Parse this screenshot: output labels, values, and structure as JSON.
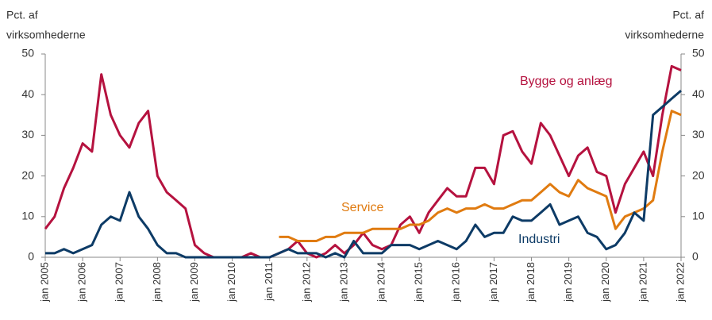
{
  "chart_data": {
    "type": "line",
    "ylabel_lines": [
      "Pct. af",
      "virksomhederne"
    ],
    "y2label_lines": [
      "Pct. af",
      "virksomhederne"
    ],
    "x": [
      2005,
      2005.25,
      2005.5,
      2005.75,
      2006,
      2006.25,
      2006.5,
      2006.75,
      2007,
      2007.25,
      2007.5,
      2007.75,
      2008,
      2008.25,
      2008.5,
      2008.75,
      2009,
      2009.25,
      2009.5,
      2009.75,
      2010,
      2010.25,
      2010.5,
      2010.75,
      2011,
      2011.25,
      2011.5,
      2011.75,
      2012,
      2012.25,
      2012.5,
      2012.75,
      2013,
      2013.25,
      2013.5,
      2013.75,
      2014,
      2014.25,
      2014.5,
      2014.75,
      2015,
      2015.25,
      2015.5,
      2015.75,
      2016,
      2016.25,
      2016.5,
      2016.75,
      2017,
      2017.25,
      2017.5,
      2017.75,
      2018,
      2018.25,
      2018.5,
      2018.75,
      2019,
      2019.25,
      2019.5,
      2019.75,
      2020,
      2020.25,
      2020.5,
      2020.75,
      2021,
      2021.25,
      2021.5,
      2021.75,
      2022
    ],
    "series": [
      {
        "name": "Bygge og anlæg",
        "color": "#b5123f",
        "values": [
          7,
          10,
          17,
          22,
          28,
          26,
          45,
          35,
          30,
          27,
          33,
          36,
          20,
          16,
          14,
          12,
          3,
          1,
          0,
          0,
          0,
          0,
          1,
          0,
          0,
          1,
          2,
          4,
          1,
          0,
          1,
          3,
          1,
          3,
          6,
          3,
          2,
          3,
          8,
          10,
          6,
          11,
          14,
          17,
          15,
          15,
          22,
          22,
          18,
          30,
          31,
          26,
          23,
          33,
          30,
          25,
          20,
          25,
          27,
          21,
          20,
          11,
          18,
          22,
          26,
          20,
          35,
          47,
          46
        ]
      },
      {
        "name": "Service",
        "color": "#e07b10",
        "values": [
          null,
          null,
          null,
          null,
          null,
          null,
          null,
          null,
          null,
          null,
          null,
          null,
          null,
          null,
          null,
          null,
          null,
          null,
          null,
          null,
          null,
          null,
          null,
          null,
          null,
          5,
          5,
          4,
          4,
          4,
          5,
          5,
          6,
          6,
          6,
          7,
          7,
          7,
          7,
          8,
          8,
          9,
          11,
          12,
          11,
          12,
          12,
          13,
          12,
          12,
          13,
          14,
          14,
          16,
          18,
          16,
          15,
          19,
          17,
          16,
          15,
          7,
          10,
          11,
          12,
          14,
          26,
          36,
          35
        ]
      },
      {
        "name": "Industri",
        "color": "#0d3b66",
        "values": [
          1,
          1,
          2,
          1,
          2,
          3,
          8,
          10,
          9,
          16,
          10,
          7,
          3,
          1,
          1,
          0,
          0,
          0,
          0,
          0,
          0,
          0,
          0,
          0,
          0,
          1,
          2,
          1,
          1,
          1,
          0,
          1,
          0,
          4,
          1,
          1,
          1,
          3,
          3,
          3,
          2,
          3,
          4,
          3,
          2,
          4,
          8,
          5,
          6,
          6,
          10,
          9,
          9,
          11,
          13,
          8,
          9,
          10,
          6,
          5,
          2,
          3,
          6,
          11,
          9,
          35,
          37,
          39,
          41
        ]
      }
    ],
    "xlim": [
      2005,
      2022
    ],
    "xticks": [
      {
        "value": 2005,
        "label": "jan 2005"
      },
      {
        "value": 2006,
        "label": "jan 2006"
      },
      {
        "value": 2007,
        "label": "jan 2007"
      },
      {
        "value": 2008,
        "label": "jan 2008"
      },
      {
        "value": 2009,
        "label": "jan 2009"
      },
      {
        "value": 2010,
        "label": "jan 2010"
      },
      {
        "value": 2011,
        "label": "jan 2011"
      },
      {
        "value": 2012,
        "label": "jan 2012"
      },
      {
        "value": 2013,
        "label": "jan 2013"
      },
      {
        "value": 2014,
        "label": "jan 2014"
      },
      {
        "value": 2015,
        "label": "jan 2015"
      },
      {
        "value": 2016,
        "label": "jan 2016"
      },
      {
        "value": 2017,
        "label": "jan 2017"
      },
      {
        "value": 2018,
        "label": "jan 2018"
      },
      {
        "value": 2019,
        "label": "jan 2019"
      },
      {
        "value": 2020,
        "label": "jan 2020"
      },
      {
        "value": 2021,
        "label": "jan 2021"
      },
      {
        "value": 2022,
        "label": "jan 2022"
      }
    ],
    "ylim": [
      0,
      50
    ],
    "yticks": [
      0,
      10,
      20,
      30,
      40,
      50
    ],
    "y2lim": [
      0,
      50
    ],
    "y2ticks": [
      0,
      10,
      20,
      30,
      40,
      50
    ],
    "grid": false
  }
}
